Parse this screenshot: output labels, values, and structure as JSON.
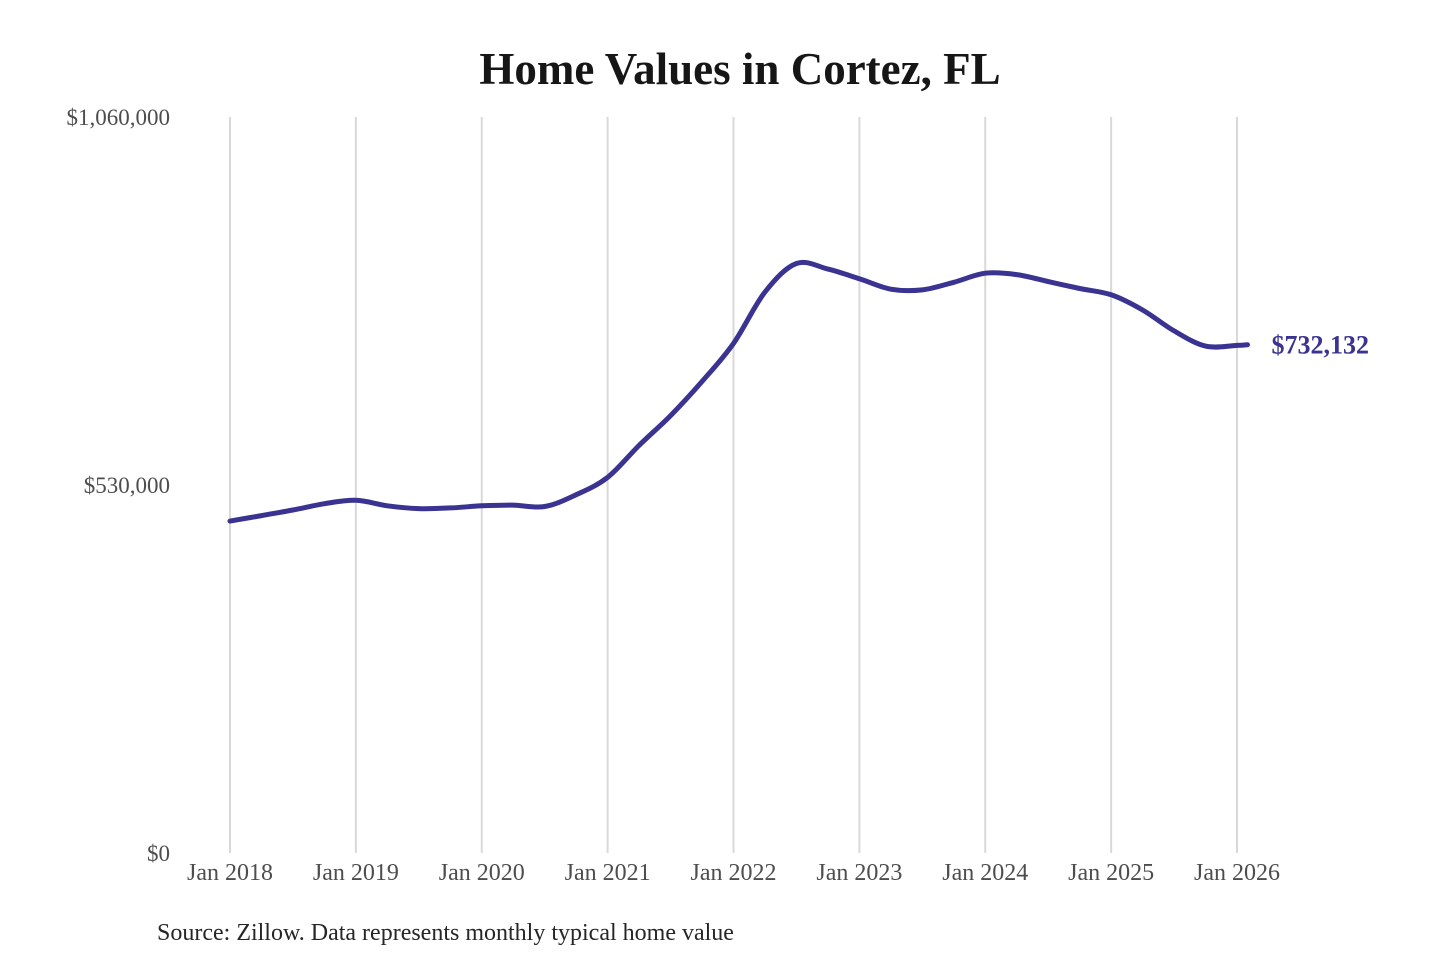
{
  "chart_data": {
    "type": "line",
    "title": "Home Values in Cortez, FL",
    "source_note": "Source: Zillow. Data represents monthly typical home value",
    "end_label": "$732,132",
    "end_value": 732132,
    "line_color": "#3a3391",
    "grid_color": "#d9d9d9",
    "title_color": "#161616",
    "axis_label_color": "#4d4d4d",
    "ylim": [
      0,
      1060000
    ],
    "grid": "vertical-only",
    "legend": "none",
    "y_ticks": [
      {
        "label": "$0",
        "value": 0
      },
      {
        "label": "$530,000",
        "value": 530000
      },
      {
        "label": "$1,060,000",
        "value": 1060000
      }
    ],
    "x_tick_labels": [
      "Jan 2018",
      "Jan 2019",
      "Jan 2020",
      "Jan 2021",
      "Jan 2022",
      "Jan 2023",
      "Jan 2024",
      "Jan 2025",
      "Jan 2026"
    ],
    "points": [
      {
        "date": "Jan 2018",
        "value": 478000
      },
      {
        "date": "Apr 2018",
        "value": 486000
      },
      {
        "date": "Jul 2018",
        "value": 494000
      },
      {
        "date": "Oct 2018",
        "value": 503000
      },
      {
        "date": "Jan 2019",
        "value": 508000
      },
      {
        "date": "Apr 2019",
        "value": 500000
      },
      {
        "date": "Jul 2019",
        "value": 496000
      },
      {
        "date": "Oct 2019",
        "value": 497000
      },
      {
        "date": "Jan 2020",
        "value": 500000
      },
      {
        "date": "Apr 2020",
        "value": 501000
      },
      {
        "date": "Jul 2020",
        "value": 499000
      },
      {
        "date": "Oct 2020",
        "value": 516000
      },
      {
        "date": "Jan 2021",
        "value": 541000
      },
      {
        "date": "Apr 2021",
        "value": 587000
      },
      {
        "date": "Jul 2021",
        "value": 630000
      },
      {
        "date": "Oct 2021",
        "value": 679000
      },
      {
        "date": "Jan 2022",
        "value": 734000
      },
      {
        "date": "Apr 2022",
        "value": 808000
      },
      {
        "date": "Jul 2022",
        "value": 849000
      },
      {
        "date": "Oct 2022",
        "value": 841000
      },
      {
        "date": "Jan 2023",
        "value": 827000
      },
      {
        "date": "Apr 2023",
        "value": 812000
      },
      {
        "date": "Jul 2023",
        "value": 811000
      },
      {
        "date": "Oct 2023",
        "value": 822000
      },
      {
        "date": "Jan 2024",
        "value": 835000
      },
      {
        "date": "Apr 2024",
        "value": 833000
      },
      {
        "date": "Jul 2024",
        "value": 823000
      },
      {
        "date": "Oct 2024",
        "value": 813000
      },
      {
        "date": "Jan 2025",
        "value": 804000
      },
      {
        "date": "Apr 2025",
        "value": 782000
      },
      {
        "date": "Jul 2025",
        "value": 752000
      },
      {
        "date": "Oct 2025",
        "value": 730000
      },
      {
        "date": "Jan 2026",
        "value": 731000
      },
      {
        "date": "Feb 2026",
        "value": 732132
      }
    ]
  }
}
